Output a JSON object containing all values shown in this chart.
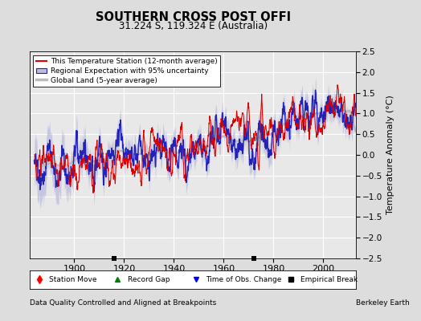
{
  "title": "SOUTHERN CROSS POST OFFI",
  "subtitle": "31.224 S, 119.324 E (Australia)",
  "ylabel": "Temperature Anomaly (°C)",
  "xlabel_note": "Data Quality Controlled and Aligned at Breakpoints",
  "watermark": "Berkeley Earth",
  "ylim": [
    -2.5,
    2.5
  ],
  "xlim": [
    1882,
    2013
  ],
  "yticks": [
    -2.5,
    -2,
    -1.5,
    -1,
    -0.5,
    0,
    0.5,
    1,
    1.5,
    2,
    2.5
  ],
  "xticks": [
    1900,
    1920,
    1940,
    1960,
    1980,
    2000
  ],
  "empirical_breaks": [
    1916,
    1972
  ],
  "bg_color": "#dddddd",
  "plot_bg_color": "#e8e8e8",
  "red_color": "#dd0000",
  "blue_color": "#2222bb",
  "blue_fill_color": "#bbbbdd",
  "gray_color": "#bbbbbb",
  "seed": 7
}
